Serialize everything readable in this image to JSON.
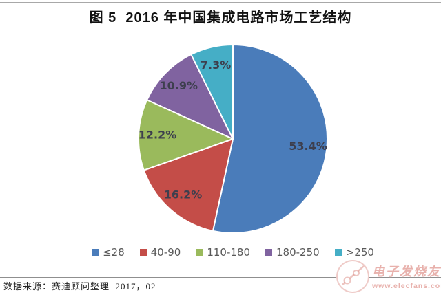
{
  "page": {
    "title": "图 5  2016 年中国集成电路市场工艺结构"
  },
  "chart_data": {
    "type": "pie",
    "title": "2016 年中国集成电路市场工艺结构",
    "categories": [
      "≤28",
      "40-90",
      "110-180",
      "180-250",
      ">250"
    ],
    "values": [
      53.4,
      16.2,
      12.2,
      10.9,
      7.3
    ],
    "percent_labels": [
      "53.4%",
      "16.2%",
      "12.2%",
      "10.9%",
      "7.3%"
    ],
    "colors": [
      "#4A7CBA",
      "#C44D48",
      "#9ABA5C",
      "#8063A0",
      "#45AEC6"
    ],
    "label_color": "#3d3f4e",
    "start_angle_deg": 0,
    "direction": "clockwise",
    "legend_position": "bottom"
  },
  "footer": {
    "source_note": "数据来源：赛迪顾问整理  2017，02"
  },
  "watermark": {
    "brand": "电子发烧友",
    "url": "www.elecfans.com"
  }
}
